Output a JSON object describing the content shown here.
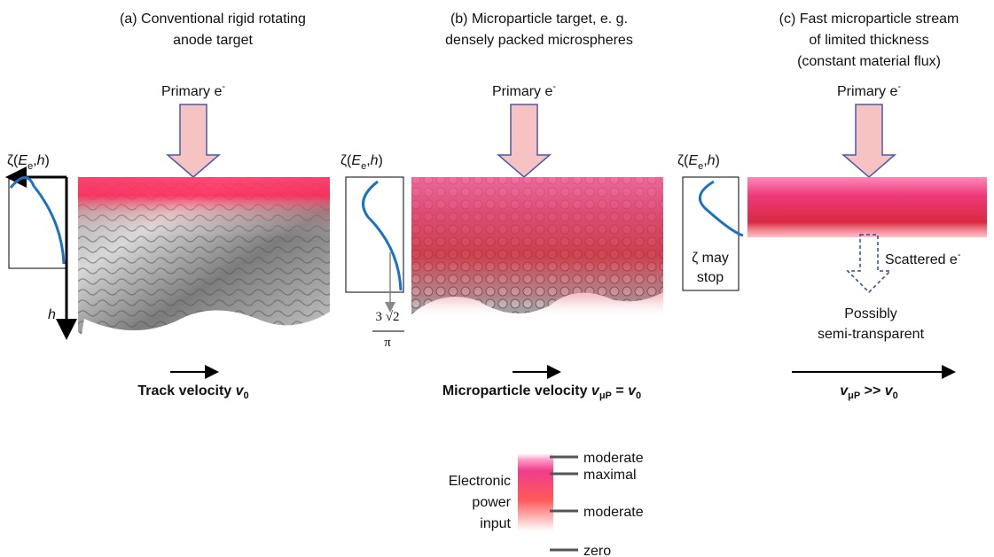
{
  "panels": [
    {
      "title_lines": [
        "(a)  Conventional rigid rotating",
        "anode target"
      ],
      "beam_label": [
        "Primary e",
        "-"
      ],
      "zeta_label": [
        "ζ(",
        "E",
        "e",
        ",",
        "h",
        ")"
      ],
      "axis_label": "h",
      "velocity_label": [
        "Track velocity ",
        "v",
        "0"
      ]
    },
    {
      "title_lines": [
        "(b) Microparticle target, e. g.",
        "densely packed microspheres"
      ],
      "beam_label": [
        "Primary e",
        "-"
      ],
      "zeta_label": [
        "ζ(",
        "E",
        "e",
        ",",
        "h",
        ")"
      ],
      "depth_label": {
        "numerator": "3 √2",
        "denominator": "π"
      },
      "velocity_label": [
        "Microparticle velocity ",
        "v",
        "μP",
        " = ",
        "v",
        "0"
      ]
    },
    {
      "title_lines": [
        "(c) Fast microparticle stream",
        "of limited thickness",
        "(constant material flux)"
      ],
      "beam_label": [
        "Primary e",
        "-"
      ],
      "zeta_label": [
        "ζ(",
        "E",
        "e",
        ",",
        "h",
        ")"
      ],
      "zeta_note": [
        "ζ may",
        "stop"
      ],
      "scattered_label": [
        "Scattered e",
        "-"
      ],
      "transmission_note": [
        "Possibly",
        "semi-transparent"
      ],
      "velocity_label": [
        "v",
        "μP",
        " >> ",
        "v",
        "0"
      ]
    }
  ],
  "legend": {
    "title_lines": [
      "Electronic",
      "power",
      "input"
    ],
    "levels": [
      "moderate",
      "maximal",
      "moderate",
      "zero"
    ]
  }
}
